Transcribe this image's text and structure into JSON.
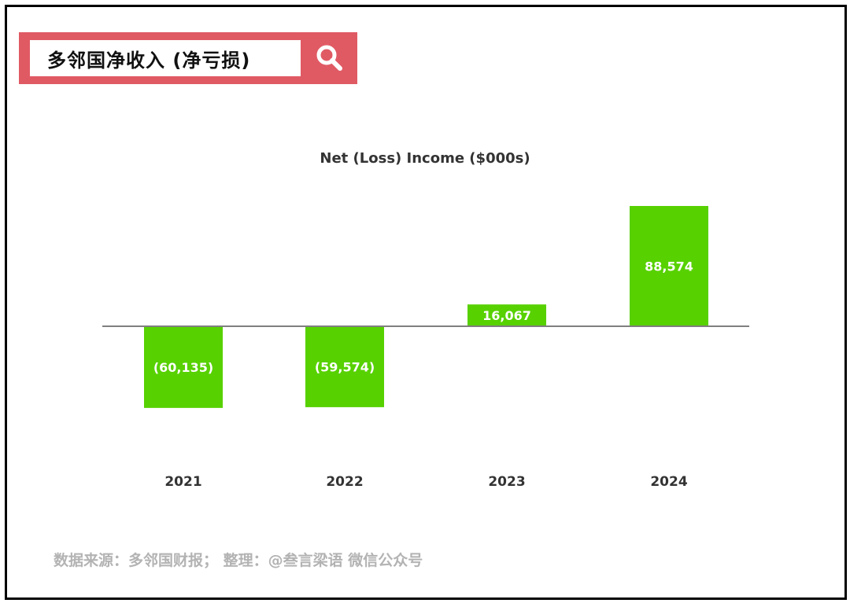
{
  "header": {
    "title": "多邻国净收入 (净亏损)"
  },
  "chart_data": {
    "type": "bar",
    "title": "Net (Loss) Income ($000s)",
    "categories": [
      "2021",
      "2022",
      "2023",
      "2024"
    ],
    "values": [
      -60135,
      -59574,
      16067,
      88574
    ],
    "value_labels": [
      "(60,135)",
      "(59,574)",
      "16,067",
      "88,574"
    ],
    "xlabel": "",
    "ylabel": "",
    "ylim": [
      -60135,
      88574
    ],
    "grid": false,
    "bar_color": "#57d100"
  },
  "footer": {
    "source": "数据来源：多邻国财报；  整理：@叁言梁语 微信公众号"
  },
  "colors": {
    "accent": "#e05a64",
    "axis": "#7f7f7f"
  }
}
